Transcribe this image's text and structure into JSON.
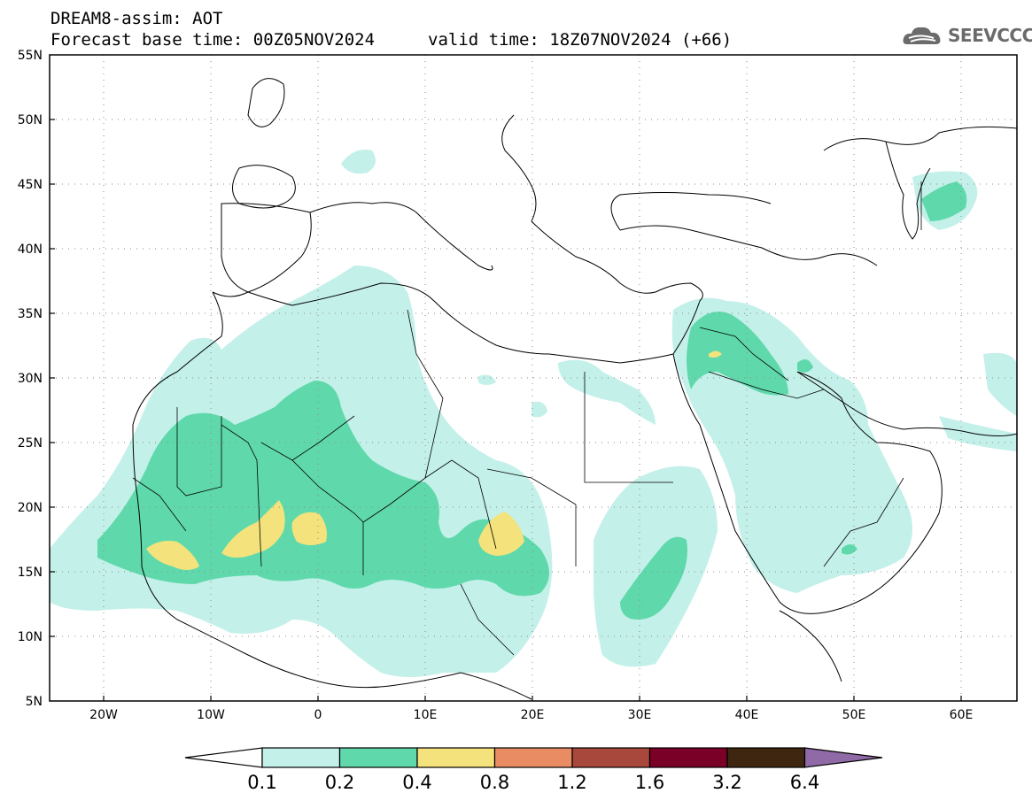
{
  "header": {
    "model_title": "DREAM8-assim: AOT",
    "base_time": "Forecast base time: 00Z05NOV2024",
    "valid_time": "valid time: 18Z07NOV2024 (+66)",
    "logo_text": "SEEVCCC"
  },
  "map": {
    "lon_range": [
      -25,
      65
    ],
    "lat_range": [
      5,
      55
    ],
    "x_ticks": [
      "20W",
      "10W",
      "0",
      "10E",
      "20E",
      "30E",
      "40E",
      "50E",
      "60E"
    ],
    "y_ticks": [
      "55N",
      "50N",
      "45N",
      "40N",
      "35N",
      "30N",
      "25N",
      "20N",
      "15N",
      "10N",
      "5N"
    ],
    "gridlines": "dotted"
  },
  "colorbar": {
    "labels": [
      "0.1",
      "0.2",
      "0.4",
      "0.8",
      "1.2",
      "1.6",
      "3.2",
      "6.4"
    ],
    "colors": [
      "#ffffff",
      "#c4f0ea",
      "#5fd9ab",
      "#f4e37c",
      "#e98c63",
      "#a8473b",
      "#7a0027",
      "#3e2611",
      "#8f6aa6"
    ]
  },
  "colors": {
    "level1": "#c4f0ea",
    "level2": "#5fd9ab",
    "level3": "#f4e37c",
    "borders": "#000000"
  }
}
